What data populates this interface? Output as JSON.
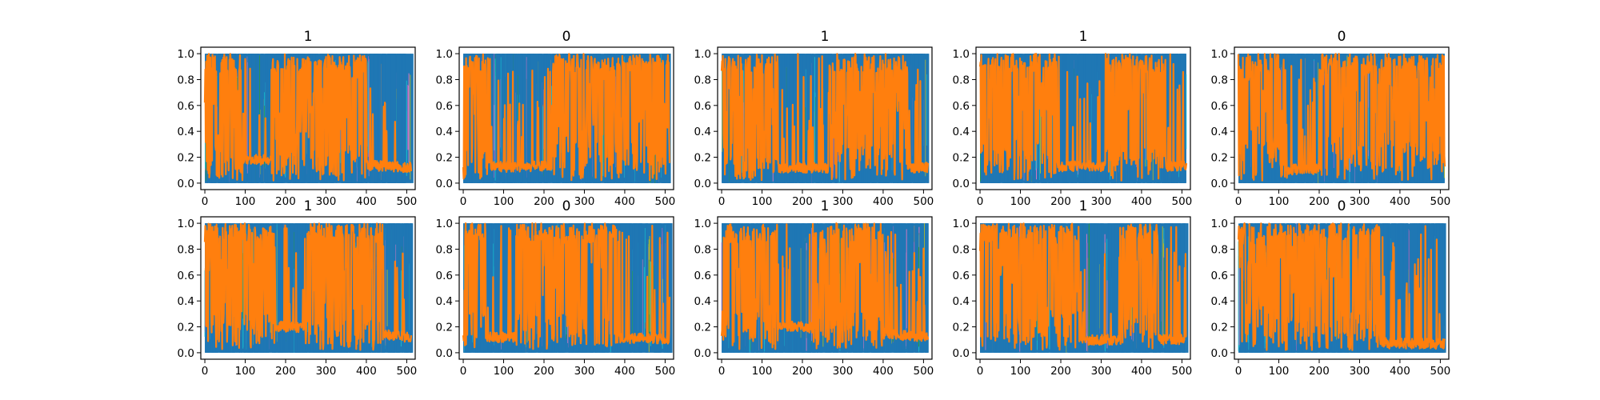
{
  "chart_data": {
    "type": "line",
    "layout": {
      "rows": 2,
      "cols": 5
    },
    "xlim": [
      -10,
      521
    ],
    "ylim": [
      -0.05,
      1.05
    ],
    "xticks": [
      0,
      100,
      200,
      300,
      400,
      500
    ],
    "yticks": [
      0.0,
      0.2,
      0.4,
      0.6,
      0.8,
      1.0
    ],
    "ytick_labels": [
      "0.0",
      "0.2",
      "0.4",
      "0.6",
      "0.8",
      "1.0"
    ],
    "n_points": 512,
    "colors": {
      "dominant_blue": "#1f77b4",
      "orange": "#ff7f0e",
      "cyan": "#17becf",
      "olive": "#bcbd22",
      "green": "#2ca02c",
      "purple": "#9467bd",
      "pink": "#e377c2",
      "gray": "#7f7f7f"
    },
    "panels": [
      {
        "title": "1",
        "orange_high_segments": [
          [
            0,
            95
          ],
          [
            165,
            400
          ]
        ],
        "orange_baseline": [
          0.2,
          0.12
        ],
        "lower_variant": false
      },
      {
        "title": "0",
        "orange_high_segments": [
          [
            0,
            70
          ],
          [
            220,
            510
          ]
        ],
        "orange_baseline": [
          0.12,
          0.15
        ],
        "lower_variant": false
      },
      {
        "title": "1",
        "orange_high_segments": [
          [
            0,
            140
          ],
          [
            265,
            460
          ]
        ],
        "orange_baseline": [
          0.12,
          0.12
        ],
        "lower_variant": false
      },
      {
        "title": "1",
        "orange_high_segments": [
          [
            0,
            190
          ],
          [
            310,
            460
          ]
        ],
        "orange_baseline": [
          0.13,
          0.13
        ],
        "lower_variant": false
      },
      {
        "title": "0",
        "orange_high_segments": [
          [
            0,
            120
          ],
          [
            200,
            510
          ]
        ],
        "orange_baseline": [
          0.1,
          0.12
        ],
        "lower_variant": false
      },
      {
        "title": "1",
        "orange_high_segments": [
          [
            0,
            175
          ],
          [
            245,
            440
          ]
        ],
        "orange_baseline": [
          0.25,
          0.12
        ],
        "lower_variant": false
      },
      {
        "title": "0",
        "orange_high_segments": [
          [
            0,
            55
          ],
          [
            130,
            380
          ]
        ],
        "orange_baseline": [
          0.12,
          0.11
        ],
        "lower_variant": false
      },
      {
        "title": "1",
        "orange_high_segments": [
          [
            0,
            140
          ],
          [
            225,
            400
          ]
        ],
        "orange_baseline": [
          0.25,
          0.12
        ],
        "lower_variant": false
      },
      {
        "title": "1",
        "orange_high_segments": [
          [
            0,
            245
          ],
          [
            345,
            440
          ]
        ],
        "orange_baseline": [
          0.1,
          0.1
        ],
        "lower_variant": false
      },
      {
        "title": "0",
        "orange_high_segments": [
          [
            0,
            355
          ]
        ],
        "orange_baseline": [
          0.08,
          0.07
        ],
        "lower_variant": true
      }
    ]
  }
}
